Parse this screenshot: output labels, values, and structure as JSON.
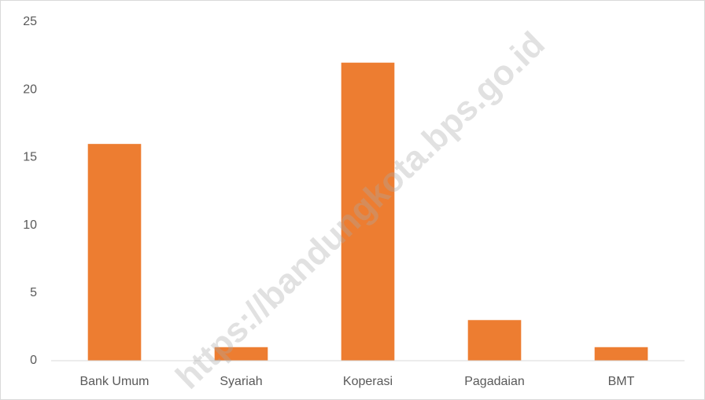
{
  "chart_data": {
    "type": "bar",
    "categories": [
      "Bank Umum",
      "Syariah",
      "Koperasi",
      "Pagadaian",
      "BMT"
    ],
    "values": [
      16,
      1,
      22,
      3,
      1
    ],
    "color": "#ed7d31",
    "ylim": [
      0,
      25
    ],
    "yticks": [
      0,
      5,
      10,
      15,
      20,
      25
    ],
    "grid": false,
    "watermark": "https://bandungkota.bps.go.id"
  }
}
